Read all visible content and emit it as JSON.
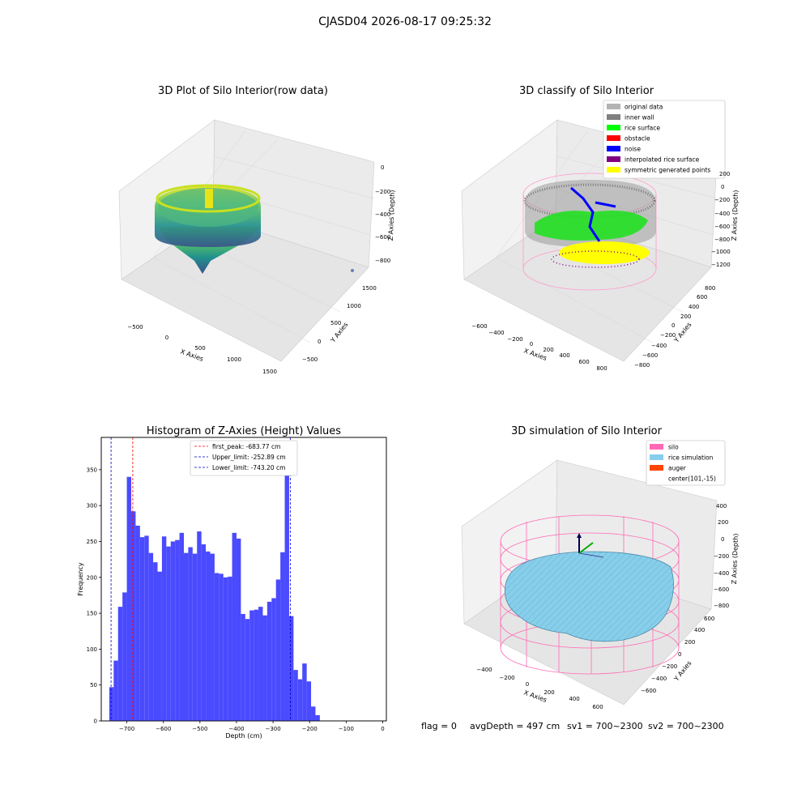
{
  "suptitle": "CJASD04 2026-08-17 09:25:32",
  "footer": {
    "flag": "flag = 0",
    "avg": "avgDepth = 497 cm",
    "sv1": "sv1 = 700~2300",
    "sv2": "sv2 = 700~2300"
  },
  "colors": {
    "histogram_bar": "#4a4aff",
    "first_peak_line": "#ff0000",
    "limit_line": "#0000cc",
    "silo_wire": "#ff69b4",
    "rice_simulation": "#87ceeb",
    "auger": "#ff4500",
    "original_data": "#b3b3b3",
    "inner_wall": "#808080",
    "rice_surface": "#00ff00",
    "obstacle": "#ff0000",
    "noise": "#0000ff",
    "interpolated_rice_surface": "#800080",
    "symmetric_generated_points": "#ffff00"
  },
  "panels": {
    "raw": {
      "title": "3D Plot of Silo Interior(row data)",
      "xlabel": "X Axies",
      "ylabel": "Y Axies",
      "zlabel": "Z Axies (Depth)",
      "xticks": [
        "−500",
        "0",
        "500",
        "1000",
        "1500"
      ],
      "yticks": [
        "−500",
        "0",
        "500",
        "1000",
        "1500"
      ],
      "zticks": [
        "0",
        "−200",
        "−400",
        "−600",
        "−800"
      ]
    },
    "classify": {
      "title": "3D classify of Silo Interior",
      "xlabel": "X Axies",
      "ylabel": "Y Axies",
      "zlabel": "Z Axies (Depth)",
      "xticks": [
        "−600",
        "−400",
        "−200",
        "0",
        "200",
        "400",
        "600",
        "800"
      ],
      "yticks": [
        "−800",
        "−600",
        "−400",
        "−200",
        "0",
        "200",
        "400",
        "600",
        "800"
      ],
      "zticks": [
        "200",
        "0",
        "−200",
        "−400",
        "−600",
        "−800",
        "−1000",
        "−1200"
      ],
      "legend": [
        {
          "label": "original data",
          "color": "#b3b3b3"
        },
        {
          "label": "inner wall",
          "color": "#808080"
        },
        {
          "label": "rice surface",
          "color": "#00ff00"
        },
        {
          "label": "obstacle",
          "color": "#ff0000"
        },
        {
          "label": "noise",
          "color": "#0000ff"
        },
        {
          "label": "interpolated rice surface",
          "color": "#800080"
        },
        {
          "label": "symmetric generated points",
          "color": "#ffff00"
        }
      ]
    },
    "simulation": {
      "title": "3D simulation of Silo Interior",
      "xlabel": "X Axies",
      "ylabel": "Y Axies",
      "zlabel": "Z Axies (Depth)",
      "xticks": [
        "−400",
        "−200",
        "0",
        "200",
        "400",
        "600"
      ],
      "yticks": [
        "−600",
        "−400",
        "−200",
        "0",
        "200",
        "400",
        "600"
      ],
      "zticks": [
        "400",
        "200",
        "0",
        "−200",
        "−400",
        "−600",
        "−800"
      ],
      "legend": [
        {
          "label": "silo",
          "color": "#ff69b4"
        },
        {
          "label": "rice simulation",
          "color": "#87ceeb"
        },
        {
          "label": "auger",
          "color": "#ff4500"
        },
        {
          "label": "center(101,-15)",
          "color": ""
        }
      ]
    }
  },
  "chart_data": {
    "type": "bar",
    "title": "Histogram of Z-Axies (Height) Values",
    "xlabel": "Depth (cm)",
    "ylabel": "Frequency",
    "xlim": [
      -770,
      10
    ],
    "ylim": [
      0,
      395
    ],
    "xticks": [
      -700,
      -600,
      -500,
      -400,
      -300,
      -200,
      -100,
      0
    ],
    "xtick_labels": [
      "−700",
      "−600",
      "−500",
      "−400",
      "−300",
      "−200",
      "−100",
      "0"
    ],
    "yticks": [
      0,
      50,
      100,
      150,
      200,
      250,
      300,
      350
    ],
    "bin_start": -748,
    "bin_width": 12,
    "values": [
      47,
      84,
      159,
      179,
      340,
      292,
      272,
      256,
      258,
      234,
      221,
      208,
      257,
      243,
      250,
      252,
      262,
      234,
      242,
      233,
      264,
      246,
      236,
      233,
      206,
      205,
      200,
      201,
      262,
      254,
      149,
      142,
      154,
      155,
      159,
      147,
      166,
      171,
      197,
      235,
      377,
      146,
      71,
      58,
      80,
      55,
      20,
      8
    ],
    "reference_lines": [
      {
        "name": "first_peak: -683.77 cm",
        "x": -683.77,
        "color": "#ff0000"
      },
      {
        "name": "Upper_limit: -252.89 cm",
        "x": -252.89,
        "color": "#0000cc"
      },
      {
        "name": "Lower_limit: -743.20 cm",
        "x": -743.2,
        "color": "#0000cc"
      }
    ],
    "legend_position": "top-center"
  }
}
